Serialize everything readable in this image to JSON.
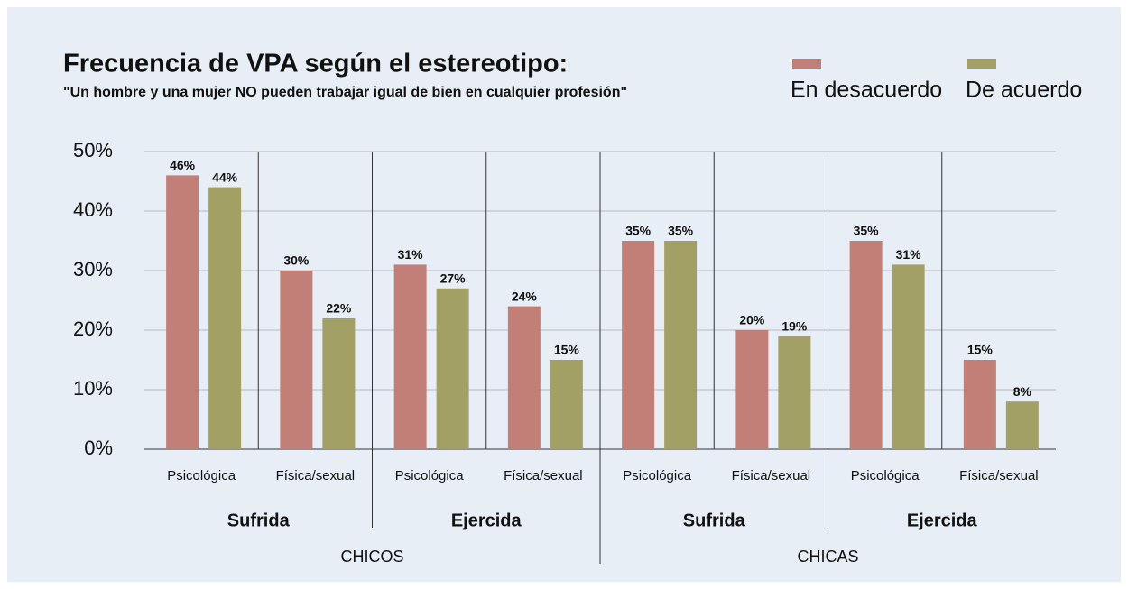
{
  "chart_data": {
    "type": "bar",
    "title": "Frecuencia de VPA según el estereotipo:",
    "subtitle": "\"Un hombre y una mujer NO pueden trabajar igual de bien en cualquier profesión\"",
    "categories": [
      "Psicológica",
      "Física/sexual",
      "Psicológica",
      "Física/sexual",
      "Psicológica",
      "Física/sexual",
      "Psicológica",
      "Física/sexual"
    ],
    "groups": [
      "Sufrida",
      "Ejercida",
      "Sufrida",
      "Ejercida"
    ],
    "supergroups": [
      "CHICOS",
      "CHICAS"
    ],
    "series": [
      {
        "name": "En desacuerdo",
        "color": "#c17f78",
        "values": [
          46,
          30,
          31,
          24,
          35,
          20,
          35,
          15
        ],
        "value_labels": [
          "46%",
          "30%",
          "31%",
          "24%",
          "35%",
          "20%",
          "35%",
          "15%"
        ]
      },
      {
        "name": "De acuerdo",
        "color": "#a3a066",
        "values": [
          44,
          22,
          27,
          15,
          35,
          19,
          31,
          8
        ],
        "value_labels": [
          "44%",
          "22%",
          "27%",
          "15%",
          "35%",
          "19%",
          "31%",
          "8%"
        ]
      }
    ],
    "ylim": [
      0,
      50
    ],
    "yticks": [
      {
        "value": 0,
        "label": "0%"
      },
      {
        "value": 10,
        "label": "10%"
      },
      {
        "value": 20,
        "label": "20%"
      },
      {
        "value": 30,
        "label": "30%"
      },
      {
        "value": 40,
        "label": "40%"
      },
      {
        "value": 50,
        "label": "50%"
      }
    ],
    "grid": true,
    "legend": "top-right"
  }
}
